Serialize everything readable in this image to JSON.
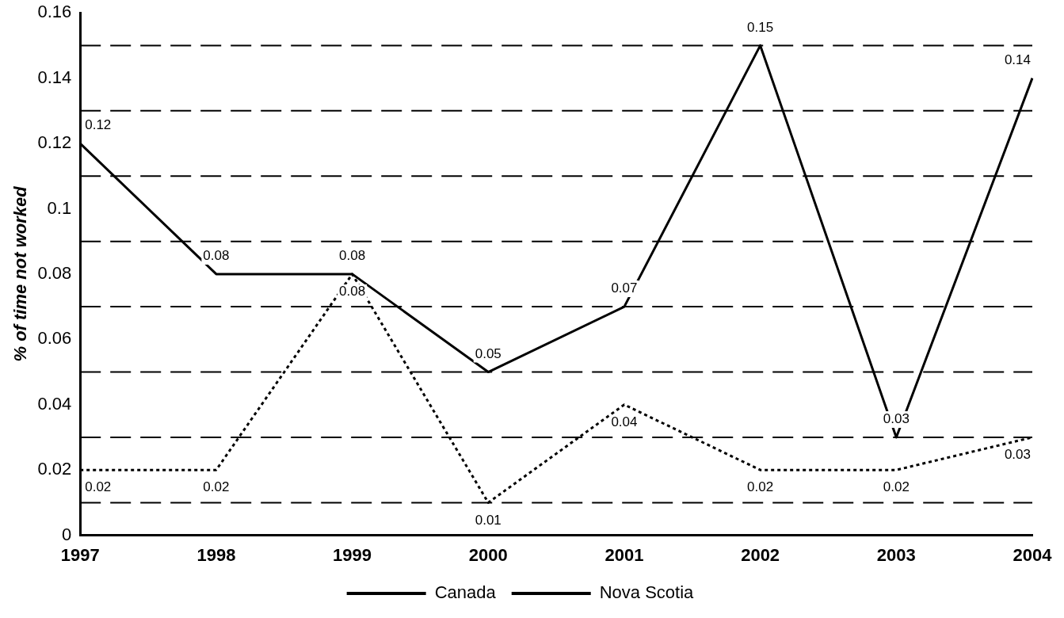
{
  "chart_data": {
    "type": "line",
    "ylabel": "% of time not worked",
    "categories": [
      "1997",
      "1998",
      "1999",
      "2000",
      "2001",
      "2002",
      "2003",
      "2004"
    ],
    "series": [
      {
        "name": "Canada",
        "color": "#000000",
        "line_style": "solid",
        "values": [
          0.12,
          0.08,
          0.08,
          0.05,
          0.07,
          0.15,
          0.03,
          0.14
        ]
      },
      {
        "name": "Nova Scotia",
        "color": "#000000",
        "line_style": "dotted",
        "values": [
          0.02,
          0.02,
          0.08,
          0.01,
          0.04,
          0.02,
          0.02,
          0.03
        ]
      }
    ],
    "ylim": [
      0,
      0.16
    ],
    "yticks": [
      0,
      0.02,
      0.04,
      0.06,
      0.08,
      0.1,
      0.12,
      0.14,
      0.16
    ],
    "grid": false,
    "legend": "bottom",
    "marker": "none",
    "data_labels": true,
    "ref_lines": [
      {
        "axis": "y",
        "value": 0.01,
        "color": "#000000",
        "line_style": "dashed"
      },
      {
        "axis": "y",
        "value": 0.03,
        "color": "#000000",
        "line_style": "dashed"
      },
      {
        "axis": "y",
        "value": 0.05,
        "color": "#000000",
        "line_style": "dashed"
      },
      {
        "axis": "y",
        "value": 0.07,
        "color": "#000000",
        "line_style": "dashed"
      },
      {
        "axis": "y",
        "value": 0.09,
        "color": "#000000",
        "line_style": "dashed"
      },
      {
        "axis": "y",
        "value": 0.11,
        "color": "#000000",
        "line_style": "dashed"
      },
      {
        "axis": "y",
        "value": 0.13,
        "color": "#000000",
        "line_style": "dashed"
      },
      {
        "axis": "y",
        "value": 0.15,
        "color": "#000000",
        "line_style": "dashed"
      }
    ]
  }
}
